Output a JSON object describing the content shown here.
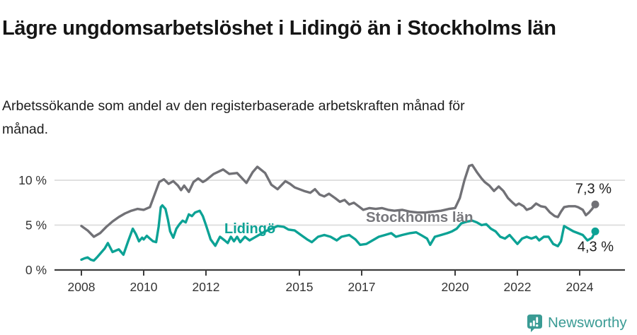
{
  "title": "Lägre ungdomsarbetslöshet i Lidingö än i Stockholms län",
  "subtitle": "Arbetssökande som andel av den registerbaserade arbetskraften månad för månad.",
  "branding": {
    "logo_text": "Newsworthy",
    "logo_color": "#3a9b94"
  },
  "colors": {
    "lidingo": "#0ca295",
    "stockholm": "#717176",
    "stockholm_label": "#77777c",
    "grid": "#dcdcdc",
    "axis": "#3d3d3d",
    "tick_label": "#333333",
    "end_label": "#1f1f1f"
  },
  "chart_data": {
    "type": "line",
    "unit": "%",
    "grid": "horizontal",
    "x_range": [
      2007.15,
      2025.4
    ],
    "y_range": [
      0,
      12.6
    ],
    "x_ticks": [
      2008,
      2010,
      2012,
      2015,
      2017,
      2020,
      2022,
      2024
    ],
    "y_ticks": [
      {
        "value": 0,
        "label": "0 %"
      },
      {
        "value": 5,
        "label": "5 %"
      },
      {
        "value": 10,
        "label": "10 %"
      }
    ],
    "series": [
      {
        "name": "Stockholms län",
        "color": "#717176",
        "label_color": "#77777c",
        "end_label": "7,3 %",
        "end_value": 7.3,
        "points": [
          [
            2008.0,
            4.9
          ],
          [
            2008.2,
            4.4
          ],
          [
            2008.4,
            3.7
          ],
          [
            2008.6,
            4.1
          ],
          [
            2008.8,
            4.8
          ],
          [
            2009.0,
            5.4
          ],
          [
            2009.2,
            5.9
          ],
          [
            2009.4,
            6.3
          ],
          [
            2009.6,
            6.6
          ],
          [
            2009.8,
            6.8
          ],
          [
            2010.0,
            6.7
          ],
          [
            2010.2,
            7.0
          ],
          [
            2010.35,
            8.4
          ],
          [
            2010.5,
            9.8
          ],
          [
            2010.65,
            10.1
          ],
          [
            2010.8,
            9.6
          ],
          [
            2010.95,
            9.9
          ],
          [
            2011.1,
            9.4
          ],
          [
            2011.2,
            8.9
          ],
          [
            2011.3,
            9.4
          ],
          [
            2011.45,
            8.7
          ],
          [
            2011.6,
            9.8
          ],
          [
            2011.75,
            10.2
          ],
          [
            2011.9,
            9.8
          ],
          [
            2012.0,
            10.0
          ],
          [
            2012.25,
            10.7
          ],
          [
            2012.55,
            11.2
          ],
          [
            2012.75,
            10.7
          ],
          [
            2013.0,
            10.8
          ],
          [
            2013.3,
            9.7
          ],
          [
            2013.5,
            10.9
          ],
          [
            2013.65,
            11.5
          ],
          [
            2013.9,
            10.8
          ],
          [
            2014.1,
            9.5
          ],
          [
            2014.3,
            9.0
          ],
          [
            2014.55,
            9.9
          ],
          [
            2014.7,
            9.6
          ],
          [
            2014.85,
            9.2
          ],
          [
            2015.0,
            9.0
          ],
          [
            2015.15,
            8.8
          ],
          [
            2015.35,
            8.6
          ],
          [
            2015.5,
            9.0
          ],
          [
            2015.65,
            8.4
          ],
          [
            2015.8,
            8.2
          ],
          [
            2015.95,
            8.5
          ],
          [
            2016.15,
            8.0
          ],
          [
            2016.3,
            7.6
          ],
          [
            2016.45,
            7.8
          ],
          [
            2016.6,
            7.3
          ],
          [
            2016.75,
            7.5
          ],
          [
            2016.9,
            7.1
          ],
          [
            2017.05,
            6.7
          ],
          [
            2017.25,
            6.9
          ],
          [
            2017.45,
            6.8
          ],
          [
            2017.65,
            6.9
          ],
          [
            2017.85,
            6.7
          ],
          [
            2018.05,
            6.6
          ],
          [
            2018.3,
            6.7
          ],
          [
            2018.55,
            6.5
          ],
          [
            2018.8,
            6.4
          ],
          [
            2019.05,
            6.4
          ],
          [
            2019.3,
            6.5
          ],
          [
            2019.55,
            6.6
          ],
          [
            2019.8,
            6.8
          ],
          [
            2020.0,
            6.9
          ],
          [
            2020.15,
            8.0
          ],
          [
            2020.3,
            10.0
          ],
          [
            2020.45,
            11.6
          ],
          [
            2020.55,
            11.7
          ],
          [
            2020.7,
            10.9
          ],
          [
            2020.85,
            10.2
          ],
          [
            2020.95,
            9.8
          ],
          [
            2021.1,
            9.4
          ],
          [
            2021.25,
            8.8
          ],
          [
            2021.4,
            9.3
          ],
          [
            2021.55,
            8.8
          ],
          [
            2021.7,
            8.0
          ],
          [
            2021.85,
            7.5
          ],
          [
            2021.95,
            7.2
          ],
          [
            2022.05,
            7.4
          ],
          [
            2022.2,
            7.1
          ],
          [
            2022.3,
            6.7
          ],
          [
            2022.45,
            6.9
          ],
          [
            2022.6,
            7.4
          ],
          [
            2022.75,
            7.1
          ],
          [
            2022.9,
            7.0
          ],
          [
            2023.05,
            6.4
          ],
          [
            2023.2,
            6.0
          ],
          [
            2023.3,
            5.9
          ],
          [
            2023.4,
            6.5
          ],
          [
            2023.5,
            7.0
          ],
          [
            2023.65,
            7.1
          ],
          [
            2023.85,
            7.1
          ],
          [
            2023.95,
            7.0
          ],
          [
            2024.1,
            6.7
          ],
          [
            2024.2,
            6.1
          ],
          [
            2024.3,
            6.4
          ],
          [
            2024.4,
            6.8
          ],
          [
            2024.5,
            7.3
          ]
        ]
      },
      {
        "name": "Lidingö",
        "color": "#0ca295",
        "label_color": "#0ca295",
        "end_label": "4,3 %",
        "end_value": 4.3,
        "points": [
          [
            2008.0,
            1.15
          ],
          [
            2008.1,
            1.3
          ],
          [
            2008.2,
            1.4
          ],
          [
            2008.3,
            1.15
          ],
          [
            2008.4,
            1.05
          ],
          [
            2008.5,
            1.4
          ],
          [
            2008.6,
            1.8
          ],
          [
            2008.75,
            2.4
          ],
          [
            2008.85,
            3.0
          ],
          [
            2009.0,
            2.0
          ],
          [
            2009.2,
            2.3
          ],
          [
            2009.35,
            1.7
          ],
          [
            2009.5,
            3.2
          ],
          [
            2009.65,
            4.6
          ],
          [
            2009.75,
            4.0
          ],
          [
            2009.85,
            3.2
          ],
          [
            2009.95,
            3.6
          ],
          [
            2010.0,
            3.4
          ],
          [
            2010.1,
            3.8
          ],
          [
            2010.2,
            3.5
          ],
          [
            2010.3,
            3.2
          ],
          [
            2010.4,
            3.1
          ],
          [
            2010.48,
            4.8
          ],
          [
            2010.55,
            7.0
          ],
          [
            2010.6,
            7.2
          ],
          [
            2010.7,
            6.8
          ],
          [
            2010.78,
            5.6
          ],
          [
            2010.85,
            4.3
          ],
          [
            2010.95,
            3.6
          ],
          [
            2011.05,
            4.6
          ],
          [
            2011.15,
            5.1
          ],
          [
            2011.25,
            5.5
          ],
          [
            2011.35,
            5.3
          ],
          [
            2011.45,
            6.2
          ],
          [
            2011.55,
            6.0
          ],
          [
            2011.65,
            6.4
          ],
          [
            2011.8,
            6.6
          ],
          [
            2011.9,
            6.0
          ],
          [
            2012.0,
            5.0
          ],
          [
            2012.15,
            3.4
          ],
          [
            2012.3,
            2.7
          ],
          [
            2012.45,
            3.7
          ],
          [
            2012.6,
            3.3
          ],
          [
            2012.7,
            3.0
          ],
          [
            2012.8,
            3.7
          ],
          [
            2012.9,
            3.2
          ],
          [
            2013.0,
            3.7
          ],
          [
            2013.1,
            3.1
          ],
          [
            2013.25,
            3.7
          ],
          [
            2013.4,
            3.3
          ],
          [
            2013.55,
            3.6
          ],
          [
            2013.7,
            3.9
          ],
          [
            2013.9,
            4.3
          ],
          [
            2014.1,
            4.6
          ],
          [
            2014.3,
            4.9
          ],
          [
            2014.5,
            4.8
          ],
          [
            2014.65,
            4.5
          ],
          [
            2014.85,
            4.4
          ],
          [
            2015.05,
            3.9
          ],
          [
            2015.25,
            3.4
          ],
          [
            2015.4,
            3.1
          ],
          [
            2015.6,
            3.7
          ],
          [
            2015.8,
            3.9
          ],
          [
            2016.0,
            3.7
          ],
          [
            2016.2,
            3.3
          ],
          [
            2016.35,
            3.7
          ],
          [
            2016.6,
            3.9
          ],
          [
            2016.8,
            3.4
          ],
          [
            2016.95,
            2.8
          ],
          [
            2017.15,
            2.9
          ],
          [
            2017.35,
            3.3
          ],
          [
            2017.55,
            3.7
          ],
          [
            2017.75,
            3.9
          ],
          [
            2017.95,
            4.1
          ],
          [
            2018.1,
            3.7
          ],
          [
            2018.3,
            3.9
          ],
          [
            2018.55,
            4.1
          ],
          [
            2018.75,
            4.2
          ],
          [
            2018.95,
            3.8
          ],
          [
            2019.1,
            3.5
          ],
          [
            2019.2,
            2.8
          ],
          [
            2019.35,
            3.7
          ],
          [
            2019.55,
            3.9
          ],
          [
            2019.75,
            4.1
          ],
          [
            2019.9,
            4.3
          ],
          [
            2020.05,
            4.6
          ],
          [
            2020.2,
            5.2
          ],
          [
            2020.4,
            5.4
          ],
          [
            2020.55,
            5.5
          ],
          [
            2020.7,
            5.3
          ],
          [
            2020.85,
            5.0
          ],
          [
            2021.0,
            5.1
          ],
          [
            2021.15,
            4.6
          ],
          [
            2021.3,
            4.3
          ],
          [
            2021.45,
            3.7
          ],
          [
            2021.6,
            3.5
          ],
          [
            2021.75,
            3.9
          ],
          [
            2021.9,
            3.3
          ],
          [
            2022.0,
            2.9
          ],
          [
            2022.15,
            3.5
          ],
          [
            2022.3,
            3.7
          ],
          [
            2022.45,
            3.5
          ],
          [
            2022.6,
            3.7
          ],
          [
            2022.7,
            3.3
          ],
          [
            2022.85,
            3.7
          ],
          [
            2023.0,
            3.7
          ],
          [
            2023.15,
            2.9
          ],
          [
            2023.3,
            2.65
          ],
          [
            2023.4,
            3.2
          ],
          [
            2023.5,
            4.9
          ],
          [
            2023.65,
            4.6
          ],
          [
            2023.8,
            4.3
          ],
          [
            2023.95,
            4.1
          ],
          [
            2024.1,
            3.9
          ],
          [
            2024.25,
            3.3
          ],
          [
            2024.4,
            3.6
          ],
          [
            2024.5,
            4.3
          ]
        ]
      }
    ]
  }
}
